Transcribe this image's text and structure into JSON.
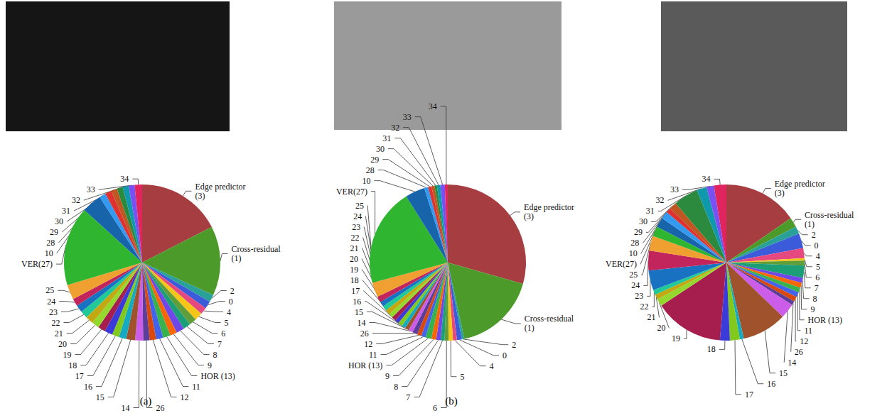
{
  "chart_data": [
    {
      "type": "pie",
      "title": "(a)",
      "categories": [
        "Edge predictor (3)",
        "Cross-residual (1)",
        "2",
        "0",
        "4",
        "5",
        "6",
        "7",
        "8",
        "9",
        "HOR (13)",
        "11",
        "12",
        "26",
        "14",
        "15",
        "16",
        "17",
        "18",
        "19",
        "20",
        "21",
        "22",
        "23",
        "24",
        "25",
        "VER(27)",
        "10",
        "28",
        "29",
        "30",
        "31",
        "32",
        "33",
        "34"
      ],
      "values": [
        17,
        14,
        1.5,
        1.5,
        1.4,
        1.6,
        1.5,
        1.5,
        1.6,
        1.4,
        1.5,
        1.4,
        1.3,
        1.3,
        1.6,
        1.8,
        1.5,
        1.4,
        1.6,
        1.5,
        1.5,
        1.6,
        1.5,
        1.5,
        1.5,
        3,
        16,
        4,
        1.3,
        1.3,
        1.2,
        1.2,
        1.2,
        1.2,
        1.5
      ],
      "colors": [
        "#a63d40",
        "#4c9a2a",
        "#2aa198",
        "#3b5bdb",
        "#e64980",
        "#f5c518",
        "#5f9e3a",
        "#1c9e77",
        "#7048e8",
        "#f76707",
        "#37b24d",
        "#4263eb",
        "#d9480f",
        "#5c3d99",
        "#cc5de8",
        "#a0522d",
        "#15aabf",
        "#82c91e",
        "#3b3bd9",
        "#a61e4d",
        "#94d82d",
        "#c2a813",
        "#20c997",
        "#1971c2",
        "#c2255c",
        "#f0a030",
        "#2fb52f",
        "#1864ab",
        "#339af0",
        "#e03131",
        "#c05621",
        "#2b8a3e",
        "#1098ad",
        "#7950f2",
        "#e0245e"
      ]
    },
    {
      "type": "pie",
      "title": "(b)",
      "categories": [
        "Edge predictor (3)",
        "Cross-residual (1)",
        "2",
        "0",
        "4",
        "5",
        "6",
        "7",
        "8",
        "9",
        "HOR (13)",
        "11",
        "12",
        "26",
        "14",
        "15",
        "16",
        "17",
        "18",
        "19",
        "20",
        "21",
        "22",
        "23",
        "24",
        "25",
        "VER(27)",
        "10",
        "28",
        "29",
        "30",
        "31",
        "32",
        "33",
        "34"
      ],
      "values": [
        29,
        17,
        0.5,
        1,
        0.8,
        0.9,
        0.8,
        0.8,
        0.9,
        1,
        1.2,
        0.9,
        0.9,
        1,
        0.9,
        0.8,
        0.8,
        0.9,
        0.8,
        0.9,
        0.9,
        1,
        1,
        1,
        1.2,
        3,
        20,
        4,
        0.8,
        0.7,
        0.6,
        0.5,
        0.7,
        0.9,
        0.6
      ],
      "colors": [
        "#a63d40",
        "#4c9a2a",
        "#2aa198",
        "#3b5bdb",
        "#e64980",
        "#f5c518",
        "#5f9e3a",
        "#1c9e77",
        "#7048e8",
        "#f76707",
        "#37b24d",
        "#4263eb",
        "#d9480f",
        "#5c3d99",
        "#cc5de8",
        "#a0522d",
        "#15aabf",
        "#82c91e",
        "#3b3bd9",
        "#a61e4d",
        "#94d82d",
        "#c2a813",
        "#20c997",
        "#1971c2",
        "#c2255c",
        "#f0a030",
        "#2fb52f",
        "#1864ab",
        "#339af0",
        "#e03131",
        "#c05621",
        "#2b8a3e",
        "#1098ad",
        "#7950f2",
        "#e0245e"
      ]
    },
    {
      "type": "pie",
      "categories": [
        "Edge predictor (3)",
        "Cross-residual (1)",
        "2",
        "0",
        "4",
        "5",
        "6",
        "7",
        "8",
        "9",
        "HOR (13)",
        "11",
        "12",
        "26",
        "14",
        "15",
        "16",
        "17",
        "18",
        "19",
        "20",
        "21",
        "22",
        "23",
        "24",
        "25",
        "VER(27)",
        "10",
        "28",
        "29",
        "30",
        "31",
        "32",
        "33",
        "34"
      ],
      "values": [
        15,
        2,
        1.5,
        3,
        2,
        0.5,
        1,
        2.5,
        1,
        1,
        1,
        1,
        1,
        0.8,
        3,
        9,
        0.8,
        2,
        2,
        14,
        1.5,
        1,
        1,
        4,
        4,
        3,
        2,
        2,
        1.5,
        1,
        1.5,
        5,
        2,
        1.5,
        2.5
      ],
      "colors": [
        "#a63d40",
        "#4c9a2a",
        "#2aa198",
        "#3b5bdb",
        "#e64980",
        "#f5c518",
        "#5f9e3a",
        "#1c9e77",
        "#7048e8",
        "#f76707",
        "#37b24d",
        "#4263eb",
        "#d9480f",
        "#5c3d99",
        "#cc5de8",
        "#a0522d",
        "#15aabf",
        "#82c91e",
        "#3b3bd9",
        "#a61e4d",
        "#94d82d",
        "#c2a813",
        "#20c997",
        "#1971c2",
        "#c2255c",
        "#f0a030",
        "#2fb52f",
        "#1864ab",
        "#339af0",
        "#e03131",
        "#c05621",
        "#2b8a3e",
        "#1098ad",
        "#7950f2",
        "#e0245e"
      ]
    }
  ]
}
